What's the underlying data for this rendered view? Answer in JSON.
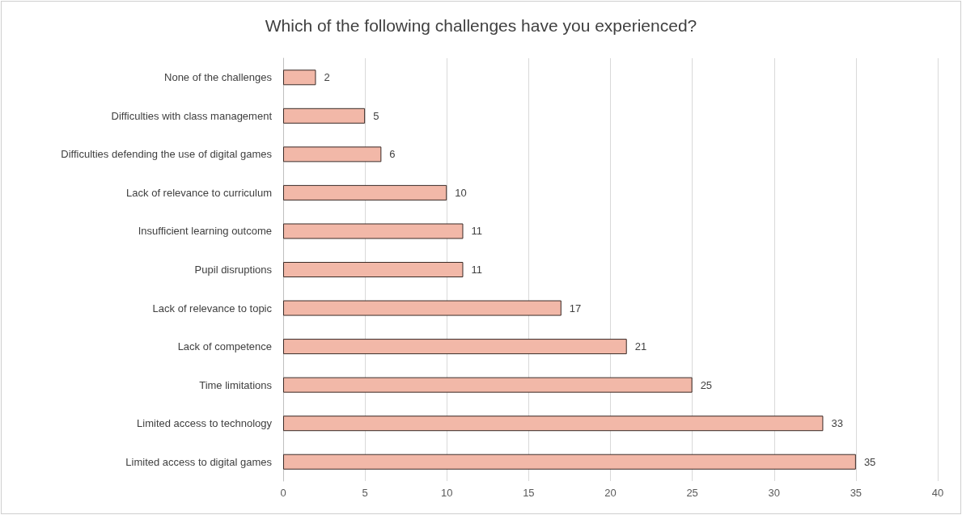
{
  "chart_data": {
    "type": "bar",
    "orientation": "horizontal",
    "title": "Which of the following challenges have you experienced?",
    "categories": [
      "None of the challenges",
      "Difficulties with class management",
      "Difficulties defending the use of digital games",
      "Lack of relevance to curriculum",
      "Insufficient learning outcome",
      "Pupil disruptions",
      "Lack of relevance to topic",
      "Lack of competence",
      "Time limitations",
      "Limited access to technology",
      "Limited access to digital games"
    ],
    "values": [
      2,
      5,
      6,
      10,
      11,
      11,
      17,
      21,
      25,
      33,
      35
    ],
    "color": "#f2b8a8",
    "xlim": [
      0,
      40
    ],
    "xticks": [
      0,
      5,
      10,
      15,
      20,
      25,
      30,
      35,
      40
    ],
    "grid": "x",
    "data_labels": true
  }
}
